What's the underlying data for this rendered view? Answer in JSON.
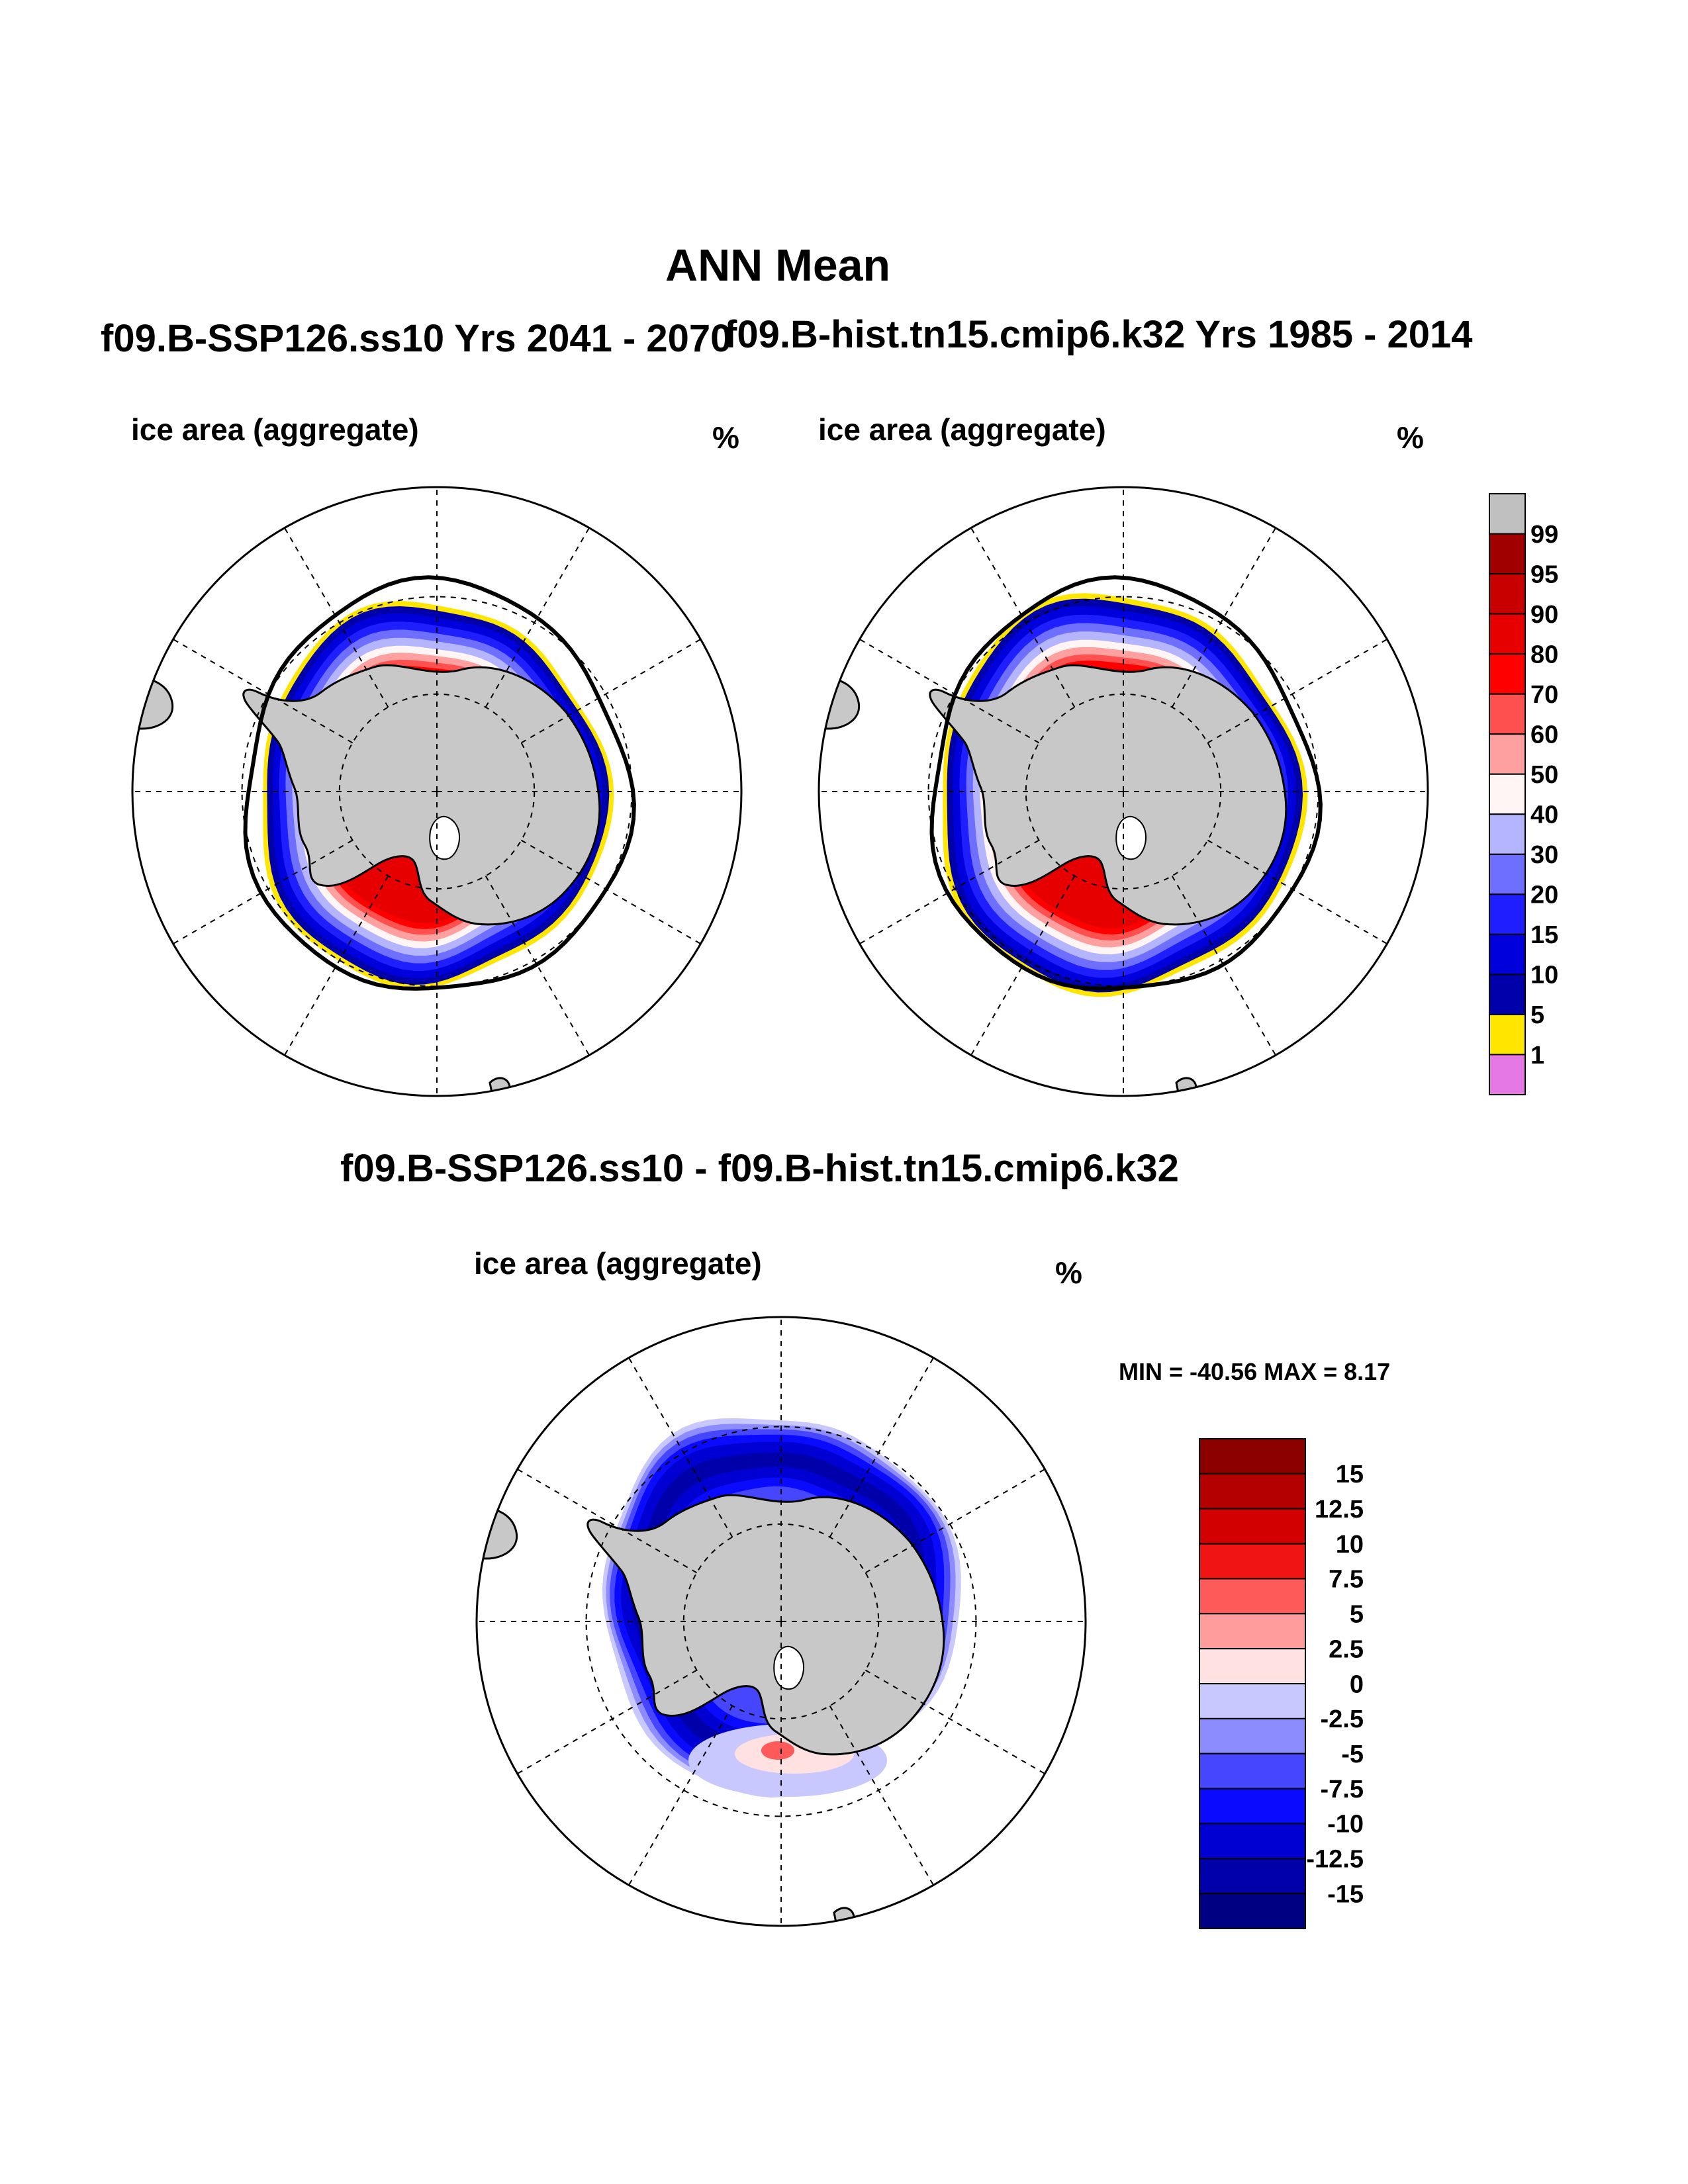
{
  "title": "ANN Mean",
  "panel_left": {
    "case_title": "f09.B-SSP126.ss10  Yrs 2041 - 2070",
    "variable": "ice area  (aggregate)",
    "units": "%"
  },
  "panel_right": {
    "case_title": "f09.B-hist.tn15.cmip6.k32  Yrs 1985 - 2014",
    "variable": "ice area  (aggregate)",
    "units": "%"
  },
  "panel_diff": {
    "case_title": "f09.B-SSP126.ss10 - f09.B-hist.tn15.cmip6.k32",
    "variable": "ice area  (aggregate)",
    "units": "%",
    "stats": "MIN = -40.56 MAX =   8.17"
  },
  "colorbar_top": {
    "labels": [
      "99",
      "95",
      "90",
      "80",
      "70",
      "60",
      "50",
      "40",
      "30",
      "20",
      "15",
      "10",
      "5",
      "1"
    ],
    "colors": [
      "#c0c0c0",
      "#a00000",
      "#c80000",
      "#e60000",
      "#ff0000",
      "#ff5050",
      "#ffa0a0",
      "#fff5f5",
      "#b4b4ff",
      "#6e6eff",
      "#1e1eff",
      "#0000dc",
      "#0000aa",
      "#ffe600",
      "#e678e6"
    ]
  },
  "colorbar_diff": {
    "labels": [
      "15",
      "12.5",
      "10",
      "7.5",
      "5",
      "2.5",
      "0",
      "-2.5",
      "-5",
      "-7.5",
      "-10",
      "-12.5",
      "-15"
    ],
    "colors": [
      "#8c0000",
      "#b40000",
      "#d20000",
      "#f01414",
      "#ff5a5a",
      "#ff9c9c",
      "#ffe1e1",
      "#c8c8ff",
      "#8c8cff",
      "#4646ff",
      "#0a0aff",
      "#0000d2",
      "#0000aa",
      "#000082"
    ]
  },
  "map_colors": {
    "land": "#c8c8c8",
    "extent_line": "#000000",
    "ice_edge_yellow": "#ffe600"
  }
}
